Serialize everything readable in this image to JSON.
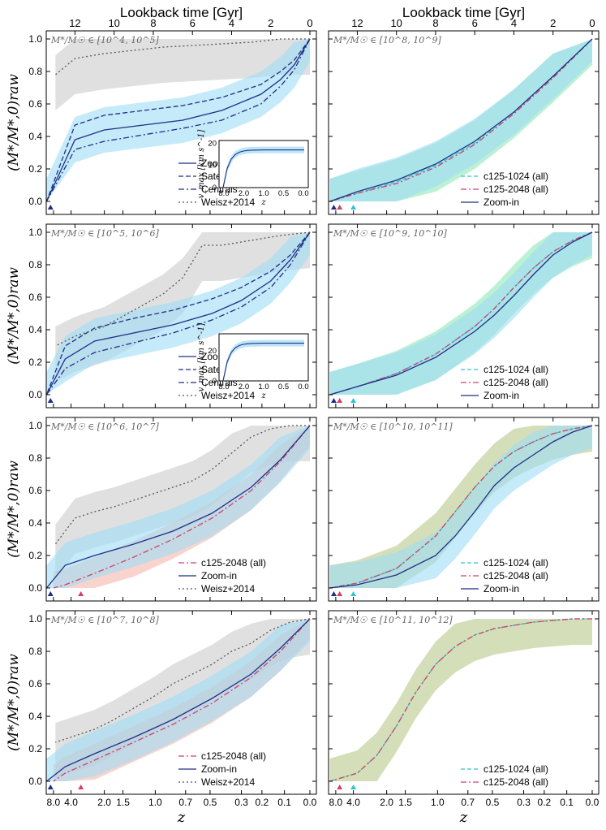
{
  "figure": {
    "top_axis_label": "Lookback time [Gyr]",
    "top_ticks": [
      "12",
      "10",
      "8",
      "6",
      "4",
      "2",
      "0"
    ],
    "bottom_axis_label": "z",
    "bottom_ticks": [
      "8.0",
      "4.0",
      "2.0",
      "1.5",
      "1.0",
      "0.7",
      "0.5",
      "0.3",
      "0.2",
      "0.1",
      "0.0"
    ],
    "y_axis_label": "(M*/M*,0)raw",
    "y_ticks": [
      "0.0",
      "0.2",
      "0.4",
      "0.6",
      "0.8",
      "1.0"
    ]
  },
  "colors": {
    "zoom_band": "#9fdcf5",
    "zoom_line": "#1f2f88",
    "c1024_band": "#8fe8b8",
    "c2048_band": "#f5b8ae",
    "c2048_line": "#d0416a",
    "c1024_line": "#2ec4cf",
    "weisz_band": "#d6d6d6",
    "weisz_line": "#555555",
    "olive_band": "#b8c98a"
  },
  "chart_data": [
    {
      "type": "line",
      "mass_bin": "M*/M☉ ∈ [10^4, 10^5]",
      "ylim": [
        -0.08,
        1.05
      ],
      "series": [
        {
          "name": "Zoom-in (all)",
          "x": [
            0.0,
            0.8,
            1.5,
            2.5,
            4.5,
            6.5,
            8.5,
            10.5,
            12.0,
            13.45
          ],
          "y": [
            1.0,
            0.84,
            0.75,
            0.66,
            0.56,
            0.5,
            0.47,
            0.44,
            0.38,
            0.0
          ]
        },
        {
          "name": "Satellites",
          "x": [
            0.0,
            0.8,
            1.5,
            2.5,
            4.5,
            6.5,
            8.5,
            10.5,
            12.0,
            13.45
          ],
          "y": [
            1.0,
            0.87,
            0.8,
            0.72,
            0.64,
            0.59,
            0.56,
            0.53,
            0.47,
            0.0
          ]
        },
        {
          "name": "Centrals",
          "x": [
            0.0,
            0.8,
            1.5,
            2.5,
            4.5,
            6.5,
            8.5,
            10.5,
            12.0,
            13.45
          ],
          "y": [
            1.0,
            0.81,
            0.71,
            0.6,
            0.5,
            0.45,
            0.41,
            0.37,
            0.32,
            0.0
          ]
        },
        {
          "name": "Weisz+2014",
          "x": [
            0.0,
            1.5,
            3.0,
            4.5,
            6.0,
            7.5,
            9.0,
            10.5,
            12.0,
            13.0
          ],
          "y": [
            1.0,
            1.0,
            0.98,
            0.97,
            0.96,
            0.95,
            0.93,
            0.91,
            0.88,
            0.78
          ]
        }
      ],
      "inset": {
        "ylabel": "v_max [km s^-1]",
        "xlabel": "z",
        "x_ticks": [
          "8.0",
          "2.0",
          "1.0",
          "0.5",
          "0.0"
        ],
        "y_ticks": [
          "0",
          "10",
          "20"
        ],
        "value": 17
      }
    },
    {
      "type": "line",
      "mass_bin": "M*/M☉ ∈ [10^8, 10^9]",
      "ylim": [
        -0.08,
        1.05
      ],
      "series": [
        {
          "name": "c125-1024 (all)",
          "x": [
            0.0,
            2.0,
            4.0,
            6.0,
            8.0,
            10.0,
            12.0,
            13.4
          ],
          "y": [
            1.0,
            0.77,
            0.55,
            0.36,
            0.22,
            0.12,
            0.05,
            0.0
          ]
        },
        {
          "name": "c125-2048 (all)",
          "x": [
            0.0,
            2.0,
            4.0,
            6.0,
            8.0,
            10.0,
            12.0,
            13.4
          ],
          "y": [
            1.0,
            0.76,
            0.54,
            0.35,
            0.21,
            0.11,
            0.05,
            0.0
          ]
        },
        {
          "name": "Zoom-in",
          "x": [
            0.0,
            2.0,
            4.0,
            6.0,
            8.0,
            10.0,
            12.0,
            13.4
          ],
          "y": [
            1.0,
            0.77,
            0.55,
            0.37,
            0.23,
            0.13,
            0.06,
            0.0
          ]
        }
      ]
    },
    {
      "type": "line",
      "mass_bin": "M*/M☉ ∈ [10^5, 10^6]",
      "ylim": [
        -0.08,
        1.05
      ],
      "series": [
        {
          "name": "Zoom-in (all)",
          "x": [
            0.0,
            1.0,
            2.0,
            3.5,
            5.0,
            7.0,
            9.0,
            11.0,
            12.5,
            13.45
          ],
          "y": [
            1.0,
            0.83,
            0.7,
            0.58,
            0.5,
            0.43,
            0.38,
            0.33,
            0.22,
            0.0
          ]
        },
        {
          "name": "Satellites",
          "x": [
            0.0,
            1.0,
            2.0,
            3.5,
            5.0,
            7.0,
            9.0,
            11.0,
            12.5,
            13.45
          ],
          "y": [
            1.0,
            0.86,
            0.76,
            0.66,
            0.59,
            0.52,
            0.47,
            0.41,
            0.3,
            0.0
          ]
        },
        {
          "name": "Centrals",
          "x": [
            0.0,
            1.0,
            2.0,
            3.5,
            5.0,
            7.0,
            9.0,
            11.0,
            12.5,
            13.45
          ],
          "y": [
            1.0,
            0.8,
            0.66,
            0.54,
            0.46,
            0.38,
            0.32,
            0.26,
            0.16,
            0.0
          ]
        },
        {
          "name": "Weisz+2014",
          "x": [
            0.0,
            1.5,
            3.0,
            4.5,
            5.5,
            6.5,
            7.5,
            9.0,
            10.5,
            12.0,
            13.0
          ],
          "y": [
            1.0,
            0.98,
            0.95,
            0.92,
            0.92,
            0.72,
            0.62,
            0.52,
            0.42,
            0.36,
            0.3
          ]
        }
      ],
      "inset": {
        "ylabel": "v_max [km s^-1]",
        "xlabel": "z",
        "x_ticks": [
          "8.0",
          "2.0",
          "1.0",
          "0.5",
          "0.0"
        ],
        "y_ticks": [
          "0",
          "20"
        ],
        "value": 25
      }
    },
    {
      "type": "line",
      "mass_bin": "M*/M☉ ∈ [10^9, 10^10]",
      "ylim": [
        -0.08,
        1.05
      ],
      "series": [
        {
          "name": "c125-1024 (all)",
          "x": [
            0.0,
            1.0,
            2.0,
            3.0,
            4.0,
            5.0,
            6.0,
            8.0,
            10.0,
            12.0,
            13.4
          ],
          "y": [
            1.0,
            0.95,
            0.88,
            0.78,
            0.66,
            0.53,
            0.42,
            0.25,
            0.13,
            0.05,
            0.0
          ]
        },
        {
          "name": "c125-2048 (all)",
          "x": [
            0.0,
            1.0,
            2.0,
            3.0,
            4.0,
            5.0,
            6.0,
            8.0,
            10.0,
            12.0,
            13.4
          ],
          "y": [
            1.0,
            0.95,
            0.88,
            0.78,
            0.66,
            0.53,
            0.42,
            0.25,
            0.13,
            0.05,
            0.0
          ]
        },
        {
          "name": "Zoom-in",
          "x": [
            0.0,
            1.0,
            2.0,
            3.0,
            4.0,
            5.0,
            6.0,
            8.0,
            10.0,
            12.0,
            13.4
          ],
          "y": [
            1.0,
            0.94,
            0.86,
            0.74,
            0.61,
            0.49,
            0.39,
            0.23,
            0.12,
            0.05,
            0.0
          ]
        }
      ]
    },
    {
      "type": "line",
      "mass_bin": "M*/M☉ ∈ [10^6, 10^7]",
      "ylim": [
        -0.08,
        1.05
      ],
      "series": [
        {
          "name": "c125-2048 (all)",
          "x": [
            0.0,
            1.5,
            3.0,
            5.0,
            7.0,
            9.0,
            11.0,
            12.5,
            13.1
          ],
          "y": [
            1.0,
            0.78,
            0.6,
            0.43,
            0.3,
            0.19,
            0.09,
            0.02,
            0.0
          ]
        },
        {
          "name": "Zoom-in",
          "x": [
            0.0,
            1.5,
            3.0,
            5.0,
            7.0,
            9.0,
            11.0,
            12.5,
            13.45
          ],
          "y": [
            1.0,
            0.79,
            0.62,
            0.46,
            0.35,
            0.27,
            0.2,
            0.14,
            0.0
          ]
        },
        {
          "name": "Weisz+2014",
          "x": [
            0.0,
            1.0,
            2.0,
            3.0,
            4.0,
            5.0,
            6.0,
            7.0,
            8.0,
            9.0,
            10.0,
            11.0,
            12.0,
            13.0
          ],
          "y": [
            1.0,
            1.0,
            0.98,
            0.93,
            0.83,
            0.73,
            0.66,
            0.62,
            0.58,
            0.54,
            0.5,
            0.47,
            0.43,
            0.27
          ]
        }
      ]
    },
    {
      "type": "line",
      "mass_bin": "M*/M☉ ∈ [10^10, 10^11]",
      "ylim": [
        -0.08,
        1.05
      ],
      "series": [
        {
          "name": "c125-1024 (all)",
          "x": [
            0.0,
            1.0,
            2.0,
            3.0,
            4.0,
            5.0,
            6.0,
            7.0,
            8.0,
            10.0,
            12.0,
            13.4
          ],
          "y": [
            1.0,
            0.98,
            0.95,
            0.9,
            0.84,
            0.75,
            0.62,
            0.47,
            0.32,
            0.12,
            0.03,
            0.0
          ]
        },
        {
          "name": "c125-2048 (all)",
          "x": [
            0.0,
            1.0,
            2.0,
            3.0,
            4.0,
            5.0,
            6.0,
            7.0,
            8.0,
            10.0,
            12.0,
            13.4
          ],
          "y": [
            1.0,
            0.98,
            0.95,
            0.9,
            0.84,
            0.75,
            0.62,
            0.47,
            0.32,
            0.12,
            0.03,
            0.0
          ]
        },
        {
          "name": "Zoom-in",
          "x": [
            0.0,
            1.0,
            2.0,
            3.0,
            4.0,
            5.0,
            6.0,
            7.0,
            8.0,
            10.0,
            12.0,
            13.4
          ],
          "y": [
            1.0,
            0.96,
            0.9,
            0.82,
            0.74,
            0.63,
            0.47,
            0.32,
            0.2,
            0.08,
            0.02,
            0.0
          ]
        }
      ]
    },
    {
      "type": "line",
      "mass_bin": "M*/M☉ ∈ [10^7, 10^8]",
      "ylim": [
        -0.08,
        1.05
      ],
      "series": [
        {
          "name": "c125-2048 (all)",
          "x": [
            0.0,
            1.5,
            3.0,
            5.0,
            7.0,
            9.0,
            11.0,
            12.5,
            13.1
          ],
          "y": [
            1.0,
            0.8,
            0.64,
            0.48,
            0.35,
            0.24,
            0.13,
            0.05,
            0.0
          ]
        },
        {
          "name": "Zoom-in",
          "x": [
            0.0,
            1.5,
            3.0,
            5.0,
            7.0,
            9.0,
            11.0,
            12.5,
            13.45
          ],
          "y": [
            1.0,
            0.82,
            0.66,
            0.51,
            0.38,
            0.27,
            0.17,
            0.09,
            0.0
          ]
        },
        {
          "name": "Weisz+2014",
          "x": [
            0.0,
            1.0,
            2.0,
            3.0,
            4.0,
            5.0,
            6.0,
            7.0,
            8.0,
            9.0,
            10.0,
            11.0,
            12.0,
            13.0
          ],
          "y": [
            1.0,
            0.98,
            0.93,
            0.85,
            0.8,
            0.72,
            0.66,
            0.6,
            0.52,
            0.45,
            0.38,
            0.32,
            0.28,
            0.24
          ]
        }
      ]
    },
    {
      "type": "line",
      "mass_bin": "M*/M☉ ∈ [10^11, 10^12]",
      "ylim": [
        -0.08,
        1.05
      ],
      "series": [
        {
          "name": "c125-1024 (all)",
          "x": [
            0.0,
            1.0,
            2.0,
            3.0,
            4.0,
            5.0,
            6.0,
            7.0,
            8.0,
            9.0,
            10.0,
            11.0,
            12.0,
            13.4
          ],
          "y": [
            1.0,
            1.0,
            0.99,
            0.98,
            0.96,
            0.94,
            0.9,
            0.83,
            0.72,
            0.55,
            0.34,
            0.16,
            0.05,
            0.0
          ]
        },
        {
          "name": "c125-2048 (all)",
          "x": [
            0.0,
            1.0,
            2.0,
            3.0,
            4.0,
            5.0,
            6.0,
            7.0,
            8.0,
            9.0,
            10.0,
            11.0,
            12.0,
            13.4
          ],
          "y": [
            1.0,
            1.0,
            0.99,
            0.98,
            0.96,
            0.94,
            0.9,
            0.83,
            0.72,
            0.55,
            0.34,
            0.16,
            0.05,
            0.0
          ]
        }
      ]
    }
  ]
}
